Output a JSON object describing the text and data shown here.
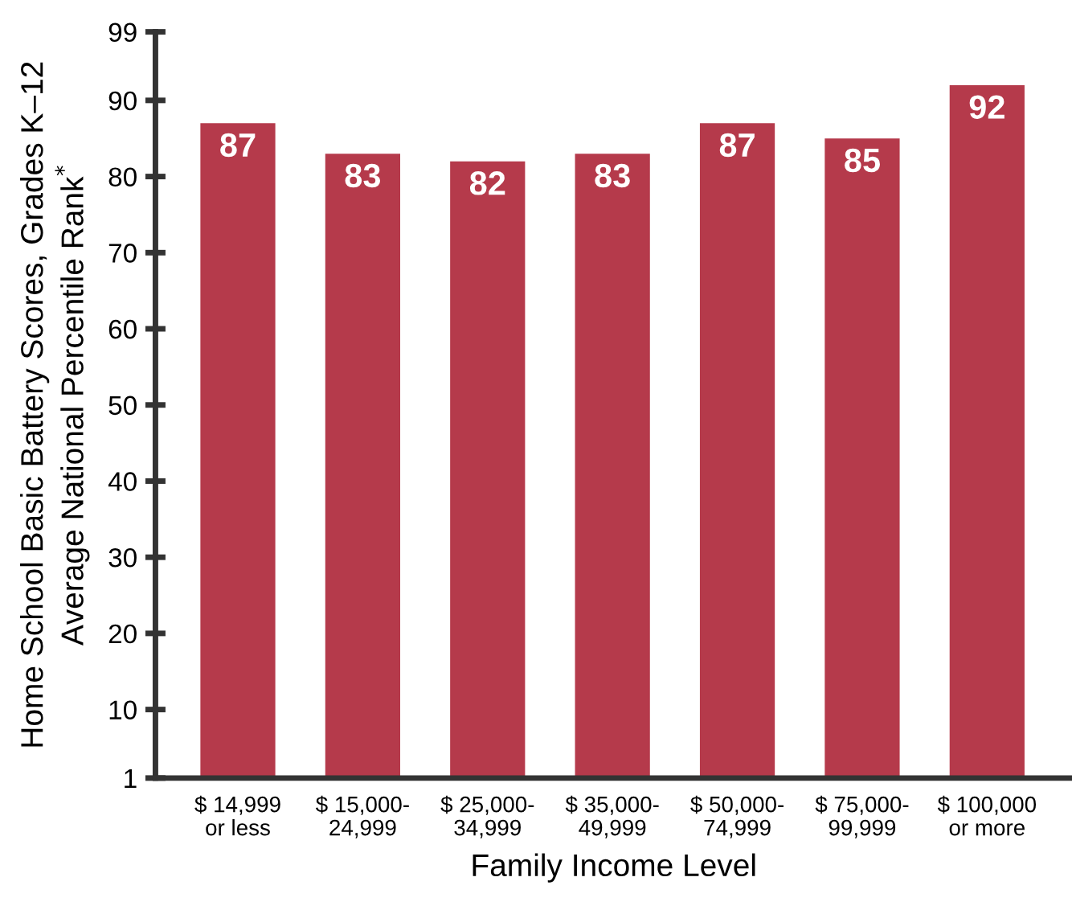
{
  "chart_data": {
    "type": "bar",
    "categories": [
      "$ 14,999\nor less",
      "$ 15,000-\n24,999",
      "$ 25,000-\n34,999",
      "$ 35,000-\n49,999",
      "$ 50,000-\n74,999",
      "$ 75,000-\n99,999",
      "$ 100,000\nor more"
    ],
    "values": [
      87,
      83,
      82,
      83,
      87,
      85,
      92
    ],
    "color": "#b53a4b",
    "xlabel": "Family Income Level",
    "ylabel": "Home School Basic Battery Scores, Grades K–12\nAverage National Percentile Rank$^{*}$",
    "ylim": [
      1,
      99
    ],
    "yticks": [
      1,
      10,
      20,
      30,
      40,
      50,
      60,
      70,
      80,
      90,
      99
    ],
    "data_labels": true,
    "grid": false,
    "legend": false
  }
}
